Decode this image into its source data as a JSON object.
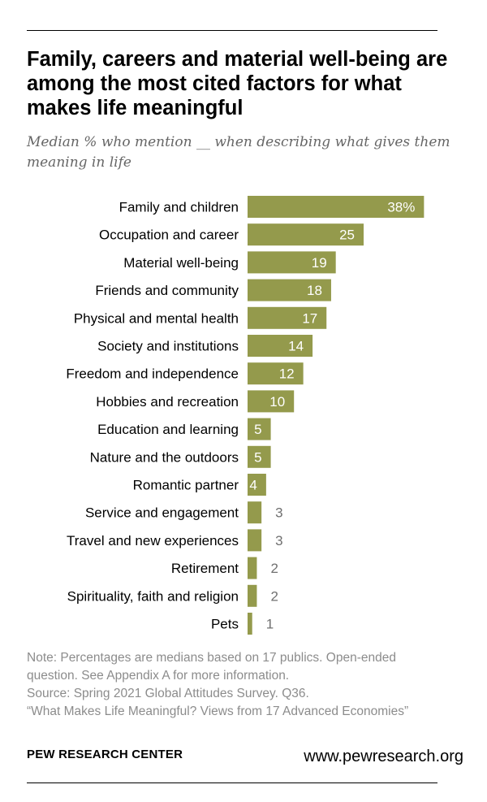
{
  "title": "Family, careers and material well-being are among the most cited factors for what makes life meaningful",
  "subtitle": "Median % who mention __ when describing what gives them meaning in life",
  "colors": {
    "bar": "#949a4c",
    "value_inside": "#ffffff",
    "value_outside": "#707070"
  },
  "chart_data": {
    "type": "bar",
    "orientation": "horizontal",
    "categories": [
      "Family and children",
      "Occupation and career",
      "Material well-being",
      "Friends and community",
      "Physical and mental health",
      "Society and institutions",
      "Freedom and independence",
      "Hobbies and recreation",
      "Education and learning",
      "Nature and the outdoors",
      "Romantic partner",
      "Service and engagement",
      "Travel and new experiences",
      "Retirement",
      "Spirituality, faith and religion",
      "Pets"
    ],
    "values": [
      38,
      25,
      19,
      18,
      17,
      14,
      12,
      10,
      5,
      5,
      4,
      3,
      3,
      2,
      2,
      1
    ],
    "value_labels": [
      "38%",
      "25",
      "19",
      "18",
      "17",
      "14",
      "12",
      "10",
      "5",
      "5",
      "4",
      "3",
      "3",
      "2",
      "2",
      "1"
    ],
    "xlim": [
      0,
      40
    ],
    "grid": false,
    "legend": false
  },
  "notes": [
    "Note: Percentages are medians based on 17 publics. Open-ended question. See Appendix A for more information.",
    "Source: Spring 2021 Global Attitudes Survey. Q36.",
    "“What Makes Life Meaningful? Views from 17 Advanced Economies”"
  ],
  "footer": {
    "brand": "PEW RESEARCH CENTER",
    "url": "www.pewresearch.org"
  }
}
